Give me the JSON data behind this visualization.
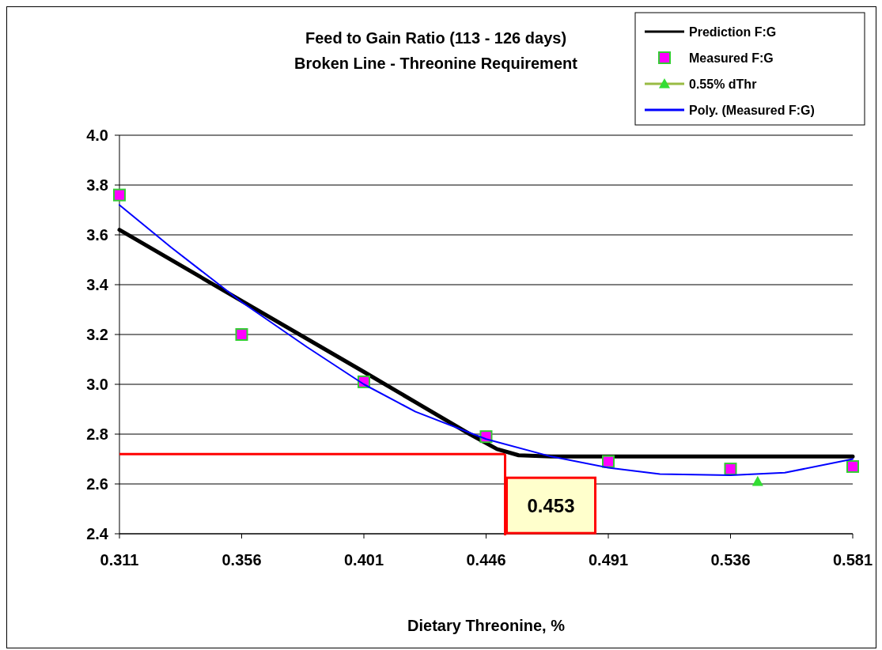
{
  "chart_data": {
    "type": "line",
    "title": "Feed to Gain Ratio (113 - 126 days)",
    "subtitle": "Broken Line - Threonine Requirement",
    "xlabel": "Dietary Threonine, %",
    "xlim": [
      0.311,
      0.581
    ],
    "xticks": [
      0.311,
      0.356,
      0.401,
      0.446,
      0.491,
      0.536,
      0.581
    ],
    "ylim": [
      2.4,
      4.0
    ],
    "yticks": [
      {
        "value": 2.4,
        "label": "2.4"
      },
      {
        "value": 2.6,
        "label": "2.6"
      },
      {
        "value": 2.8,
        "label": "2.8"
      },
      {
        "value": 3.0,
        "label": "3.0"
      },
      {
        "value": 3.2,
        "label": "3.2"
      },
      {
        "value": 3.4,
        "label": "3.4"
      },
      {
        "value": 3.6,
        "label": "3.6"
      },
      {
        "value": 3.8,
        "label": "3.8"
      },
      {
        "value": 4.0,
        "label": "4.0"
      }
    ],
    "grid": "y",
    "legend": "top right",
    "series": [
      {
        "name": "Prediction F:G",
        "color": "#000000",
        "marker": "none",
        "x": [
          0.311,
          0.401,
          0.44,
          0.45,
          0.458,
          0.47,
          0.581
        ],
        "values": [
          3.62,
          3.05,
          2.8,
          2.74,
          2.715,
          2.71,
          2.71
        ]
      },
      {
        "name": "Measured F:G",
        "type": "scatter",
        "color": "#ff00ff",
        "marker": "square",
        "x": [
          0.311,
          0.356,
          0.401,
          0.446,
          0.491,
          0.536,
          0.581
        ],
        "values": [
          3.76,
          3.2,
          3.01,
          2.79,
          2.69,
          2.66,
          2.67
        ]
      },
      {
        "name": "0.55% dThr",
        "type": "scatter",
        "color": "#33dd33",
        "marker": "triangle",
        "x": [
          0.546
        ],
        "values": [
          2.61
        ]
      },
      {
        "name": "Poly. (Measured F:G)",
        "color": "#0000ff",
        "marker": "none",
        "x": [
          0.311,
          0.33,
          0.356,
          0.38,
          0.401,
          0.42,
          0.446,
          0.47,
          0.491,
          0.51,
          0.536,
          0.556,
          0.581
        ],
        "values": [
          3.72,
          3.55,
          3.33,
          3.15,
          3.0,
          2.89,
          2.78,
          2.71,
          2.665,
          2.64,
          2.635,
          2.645,
          2.7
        ]
      }
    ],
    "ref_lines": [
      {
        "axis": "y",
        "value": 2.72,
        "color": "#ff0000"
      },
      {
        "axis": "x",
        "value": 0.453,
        "label": "0.453",
        "color": "#ff0000"
      }
    ]
  }
}
